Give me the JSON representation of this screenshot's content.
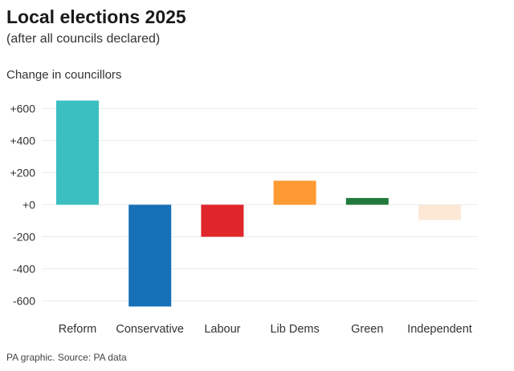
{
  "chart_data": {
    "type": "bar",
    "title": "Local elections 2025",
    "subtitle": "(after all councils declared)",
    "ylabel": "Change in councillors",
    "xlabel": "",
    "categories": [
      "Reform",
      "Conservative",
      "Labour",
      "Lib Dems",
      "Green",
      "Independent"
    ],
    "values": [
      650,
      -635,
      -200,
      150,
      42,
      -95
    ],
    "colors": [
      "#3bbfc1",
      "#1570b7",
      "#e0252b",
      "#fd9a33",
      "#217a3c",
      "#fde8d6"
    ],
    "ylim": [
      -640,
      650
    ],
    "yticks": [
      600,
      400,
      200,
      0,
      -200,
      -400,
      -600
    ],
    "ytick_labels": [
      "+600",
      "+400",
      "+200",
      "+0",
      "-200",
      "-400",
      "-600"
    ],
    "grid": true,
    "source": "PA graphic. Source: PA data"
  }
}
